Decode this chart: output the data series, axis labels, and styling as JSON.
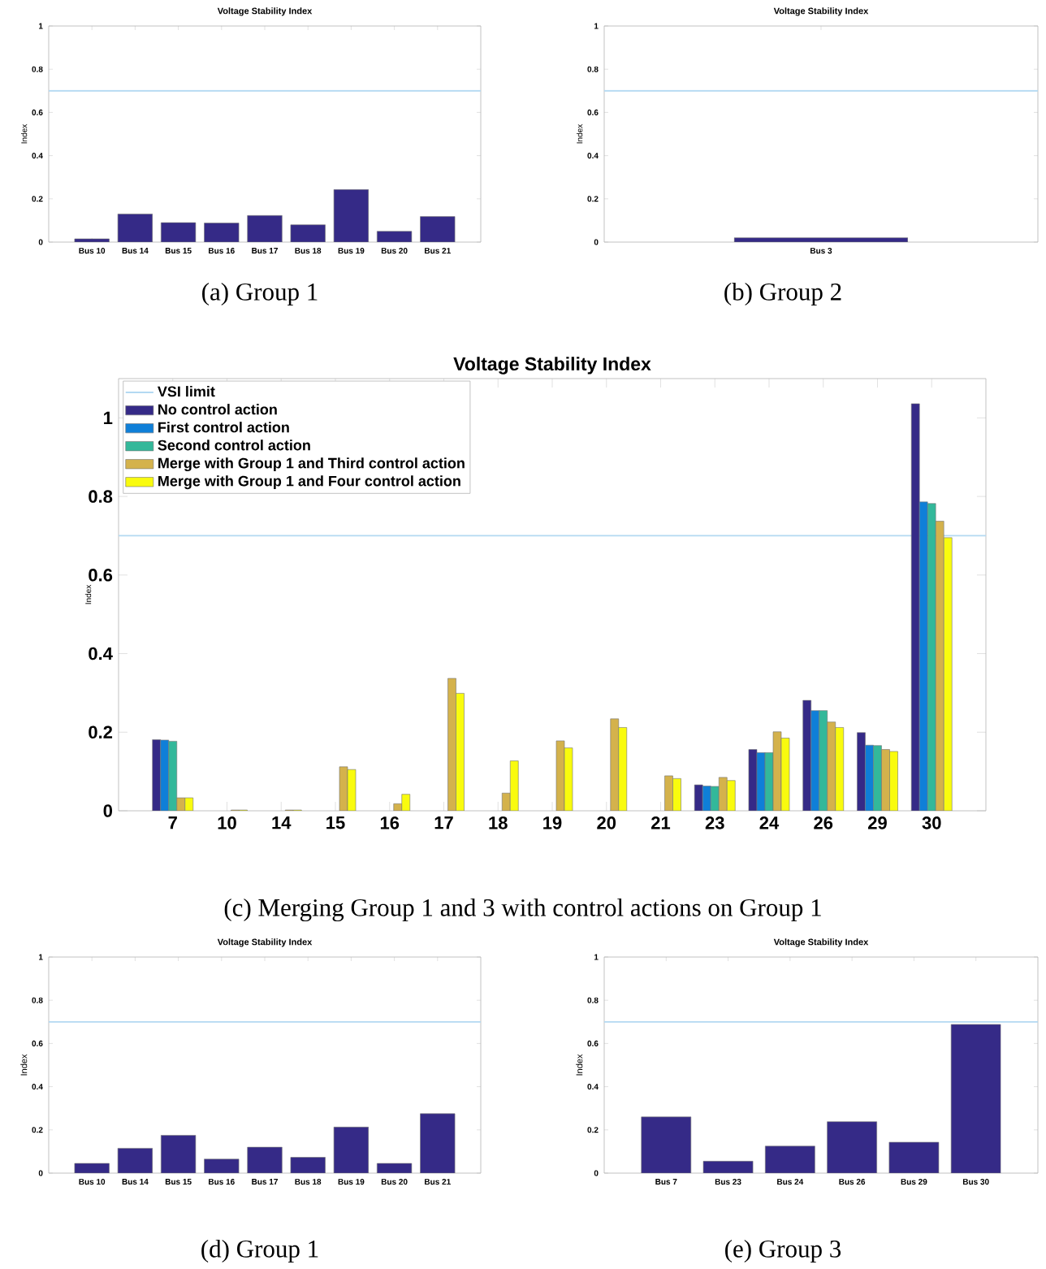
{
  "chart_data": [
    {
      "type": "bar",
      "title": "Voltage Stability Index",
      "ylabel": "Index",
      "categories": [
        "Bus 10",
        "Bus 14",
        "Bus 15",
        "Bus 16",
        "Bus 17",
        "Bus 18",
        "Bus 19",
        "Bus 20",
        "Bus 21"
      ],
      "values": [
        0.015,
        0.13,
        0.09,
        0.088,
        0.123,
        0.08,
        0.243,
        0.05,
        0.118
      ],
      "color": "#352a87",
      "ylim": [
        0,
        1
      ],
      "yticks": [
        0,
        0.2,
        0.4,
        0.6,
        0.8,
        1
      ],
      "ref_lines": [
        {
          "axis": "y",
          "value": 0.7,
          "color": "#b3d9f2"
        }
      ],
      "annotations": [
        "(a) Group 1"
      ]
    },
    {
      "type": "bar",
      "title": "Voltage Stability Index",
      "ylabel": "Index",
      "categories": [
        "Bus 3"
      ],
      "values": [
        0.02
      ],
      "color": "#352a87",
      "ylim": [
        0,
        1
      ],
      "yticks": [
        0,
        0.2,
        0.4,
        0.6,
        0.8,
        1
      ],
      "ref_lines": [
        {
          "axis": "y",
          "value": 0.7,
          "color": "#b3d9f2"
        }
      ],
      "annotations": [
        "(b) Group 2"
      ]
    },
    {
      "type": "bar",
      "title": "Voltage Stability Index",
      "ylabel": "Index",
      "categories": [
        "7",
        "10",
        "14",
        "15",
        "16",
        "17",
        "18",
        "19",
        "20",
        "21",
        "23",
        "24",
        "26",
        "29",
        "30"
      ],
      "series": [
        {
          "name": "No control action",
          "color": "#352a87",
          "values": [
            0.181,
            null,
            null,
            null,
            null,
            null,
            null,
            null,
            null,
            null,
            0.066,
            0.156,
            0.281,
            0.199,
            1.036
          ]
        },
        {
          "name": "First control action",
          "color": "#0f7fd8",
          "values": [
            0.18,
            null,
            null,
            null,
            null,
            null,
            null,
            null,
            null,
            null,
            0.063,
            0.148,
            0.255,
            0.167,
            0.786
          ]
        },
        {
          "name": "Second control action",
          "color": "#33b89a",
          "values": [
            0.177,
            null,
            null,
            null,
            null,
            null,
            null,
            null,
            null,
            null,
            0.062,
            0.148,
            0.255,
            0.166,
            0.782
          ]
        },
        {
          "name": "Merge with Group 1 and Third control action",
          "color": "#d4b24c",
          "values": [
            0.033,
            0.002,
            0.002,
            0.112,
            0.018,
            0.337,
            0.045,
            0.178,
            0.234,
            0.089,
            0.085,
            0.201,
            0.226,
            0.156,
            0.737
          ]
        },
        {
          "name": "Merge with Group 1 and Four control action",
          "color": "#f9fb0e",
          "values": [
            0.033,
            0.002,
            0.002,
            0.105,
            0.042,
            0.299,
            0.127,
            0.16,
            0.212,
            0.082,
            0.077,
            0.185,
            0.212,
            0.151,
            0.695
          ]
        }
      ],
      "ylim": [
        0,
        1.1
      ],
      "yticks": [
        0,
        0.2,
        0.4,
        0.6,
        0.8,
        1
      ],
      "ref_lines": [
        {
          "axis": "y",
          "value": 0.7,
          "color": "#b3d9f2",
          "label": "VSI limit"
        }
      ],
      "legend": "top left",
      "annotations": [
        "(c) Merging Group 1 and 3 with control actions on Group 1"
      ]
    },
    {
      "type": "bar",
      "title": "Voltage Stability Index",
      "ylabel": "Index",
      "categories": [
        "Bus 10",
        "Bus 14",
        "Bus 15",
        "Bus 16",
        "Bus 17",
        "Bus 18",
        "Bus 19",
        "Bus 20",
        "Bus 21"
      ],
      "values": [
        0.045,
        0.115,
        0.175,
        0.065,
        0.12,
        0.073,
        0.213,
        0.045,
        0.275
      ],
      "color": "#352a87",
      "ylim": [
        0,
        1
      ],
      "yticks": [
        0,
        0.2,
        0.4,
        0.6,
        0.8,
        1
      ],
      "ref_lines": [
        {
          "axis": "y",
          "value": 0.7,
          "color": "#b3d9f2"
        }
      ],
      "annotations": [
        "(d) Group 1"
      ]
    },
    {
      "type": "bar",
      "title": "Voltage Stability Index",
      "ylabel": "Index",
      "categories": [
        "Bus 7",
        "Bus 23",
        "Bus 24",
        "Bus 26",
        "Bus 29",
        "Bus 30"
      ],
      "values": [
        0.26,
        0.055,
        0.125,
        0.238,
        0.143,
        0.688
      ],
      "color": "#352a87",
      "ylim": [
        0,
        1
      ],
      "yticks": [
        0,
        0.2,
        0.4,
        0.6,
        0.8,
        1
      ],
      "ref_lines": [
        {
          "axis": "y",
          "value": 0.7,
          "color": "#b3d9f2"
        }
      ],
      "annotations": [
        "(e) Group 3"
      ]
    }
  ]
}
